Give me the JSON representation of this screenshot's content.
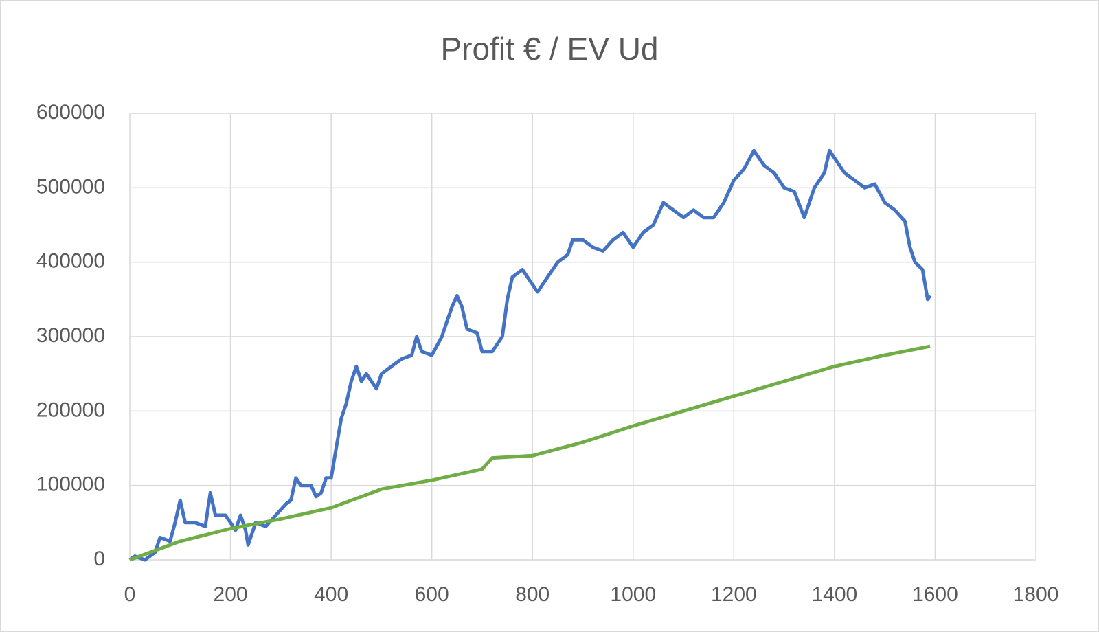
{
  "chart_data": {
    "type": "line",
    "title": "Profit € / EV Ud",
    "xlim": [
      0,
      1800
    ],
    "xticks": [
      0,
      200,
      400,
      600,
      800,
      1000,
      1200,
      1400,
      1600,
      1800
    ],
    "ylim": [
      0,
      600000
    ],
    "yticks": [
      0,
      100000,
      200000,
      300000,
      400000,
      500000,
      600000
    ],
    "grid": true,
    "series": [
      {
        "color": "#4472c4",
        "x": [
          0,
          10,
          30,
          50,
          60,
          80,
          90,
          100,
          110,
          130,
          150,
          160,
          170,
          190,
          200,
          210,
          220,
          230,
          235,
          250,
          270,
          290,
          310,
          320,
          330,
          340,
          360,
          370,
          380,
          390,
          400,
          410,
          420,
          430,
          440,
          450,
          460,
          470,
          480,
          490,
          500,
          520,
          540,
          560,
          570,
          580,
          600,
          620,
          630,
          640,
          650,
          660,
          670,
          690,
          700,
          720,
          740,
          750,
          760,
          780,
          800,
          810,
          830,
          850,
          870,
          880,
          900,
          920,
          940,
          960,
          980,
          1000,
          1020,
          1040,
          1060,
          1080,
          1100,
          1120,
          1140,
          1160,
          1180,
          1200,
          1220,
          1240,
          1260,
          1280,
          1300,
          1320,
          1340,
          1360,
          1380,
          1390,
          1400,
          1420,
          1440,
          1460,
          1480,
          1500,
          1520,
          1540,
          1550,
          1560,
          1575,
          1585,
          1590
        ],
        "values": [
          0,
          5000,
          0,
          10000,
          30000,
          25000,
          50000,
          80000,
          50000,
          50000,
          45000,
          90000,
          60000,
          60000,
          50000,
          40000,
          60000,
          40000,
          20000,
          50000,
          45000,
          60000,
          75000,
          80000,
          110000,
          100000,
          100000,
          85000,
          90000,
          110000,
          110000,
          150000,
          190000,
          210000,
          240000,
          260000,
          240000,
          250000,
          240000,
          230000,
          250000,
          260000,
          270000,
          275000,
          300000,
          280000,
          275000,
          300000,
          320000,
          340000,
          355000,
          340000,
          310000,
          305000,
          280000,
          280000,
          300000,
          350000,
          380000,
          390000,
          370000,
          360000,
          380000,
          400000,
          410000,
          430000,
          430000,
          420000,
          415000,
          430000,
          440000,
          420000,
          440000,
          450000,
          480000,
          470000,
          460000,
          470000,
          460000,
          460000,
          480000,
          510000,
          525000,
          550000,
          530000,
          520000,
          500000,
          495000,
          460000,
          500000,
          520000,
          550000,
          540000,
          520000,
          510000,
          500000,
          505000,
          480000,
          470000,
          455000,
          420000,
          400000,
          390000,
          350000,
          355000
        ]
      },
      {
        "color": "#70ad47",
        "x": [
          0,
          100,
          200,
          300,
          400,
          500,
          600,
          700,
          720,
          800,
          900,
          1000,
          1100,
          1200,
          1300,
          1400,
          1500,
          1590
        ],
        "values": [
          0,
          25000,
          42000,
          55000,
          70000,
          95000,
          107000,
          122000,
          137000,
          140000,
          158000,
          180000,
          200000,
          220000,
          240000,
          260000,
          275000,
          287000
        ]
      }
    ]
  }
}
